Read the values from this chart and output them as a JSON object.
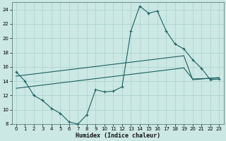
{
  "xlabel": "Humidex (Indice chaleur)",
  "background_color": "#cce8e4",
  "grid_color": "#a8d0cc",
  "line_color": "#1a6060",
  "xlim": [
    -0.5,
    23.5
  ],
  "ylim": [
    8,
    25
  ],
  "xtick_labels": [
    "0",
    "1",
    "2",
    "3",
    "4",
    "5",
    "6",
    "7",
    "8",
    "9",
    "10",
    "11",
    "12",
    "13",
    "14",
    "15",
    "16",
    "17",
    "18",
    "19",
    "20",
    "21",
    "22",
    "23"
  ],
  "xticks": [
    0,
    1,
    2,
    3,
    4,
    5,
    6,
    7,
    8,
    9,
    10,
    11,
    12,
    13,
    14,
    15,
    16,
    17,
    18,
    19,
    20,
    21,
    22,
    23
  ],
  "yticks": [
    8,
    10,
    12,
    14,
    16,
    18,
    20,
    22,
    24
  ],
  "curve_main_x": [
    0,
    1,
    2,
    3,
    4,
    5,
    6,
    7,
    8,
    9,
    10,
    11,
    12,
    13,
    14,
    15,
    16,
    17,
    18,
    19,
    20,
    21,
    22,
    23
  ],
  "curve_main_y": [
    15.3,
    14.0,
    12.0,
    11.3,
    10.2,
    9.5,
    8.3,
    8.0,
    9.3,
    12.8,
    12.5,
    12.6,
    13.2,
    21.0,
    24.5,
    23.5,
    23.8,
    21.0,
    19.2,
    18.5,
    17.0,
    15.8,
    14.2,
    14.3
  ],
  "line_upper_x": [
    0,
    1,
    2,
    3,
    4,
    5,
    6,
    7,
    8,
    9,
    10,
    11,
    12,
    13,
    14,
    15,
    16,
    17,
    18,
    19,
    20,
    21,
    22,
    23
  ],
  "line_upper_y": [
    14.7,
    14.85,
    15.0,
    15.15,
    15.3,
    15.45,
    15.6,
    15.75,
    15.9,
    16.05,
    16.2,
    16.35,
    16.5,
    16.65,
    16.8,
    16.95,
    17.1,
    17.25,
    17.4,
    17.55,
    14.2,
    14.3,
    14.4,
    14.5
  ],
  "line_lower_x": [
    0,
    1,
    2,
    3,
    4,
    5,
    6,
    7,
    8,
    9,
    10,
    11,
    12,
    13,
    14,
    15,
    16,
    17,
    18,
    19,
    20,
    21,
    22,
    23
  ],
  "line_lower_y": [
    13.0,
    13.15,
    13.3,
    13.45,
    13.6,
    13.75,
    13.9,
    14.05,
    14.2,
    14.35,
    14.5,
    14.65,
    14.8,
    14.95,
    15.1,
    15.25,
    15.4,
    15.55,
    15.7,
    15.85,
    14.3,
    14.35,
    14.4,
    14.45
  ]
}
